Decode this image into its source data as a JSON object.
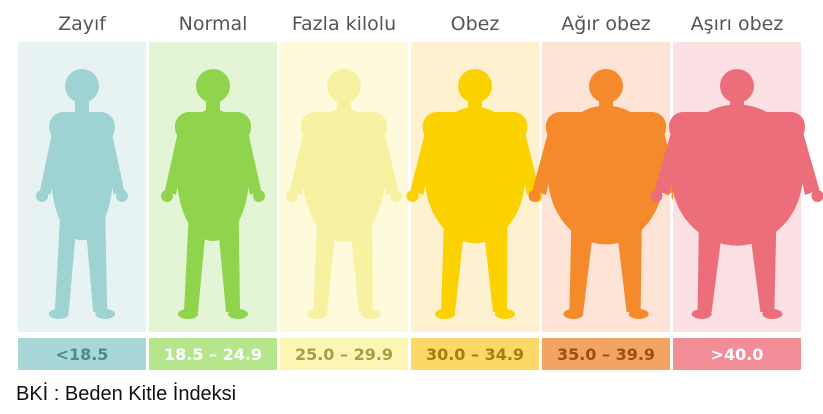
{
  "panels": [
    {
      "title": "Zayıf",
      "range": "<18.5"
    },
    {
      "title": "Normal",
      "range": "18.5 – 24.9"
    },
    {
      "title": "Fazla kilolu",
      "range": "25.0 – 29.9"
    },
    {
      "title": "Obez",
      "range": "30.0 – 34.9"
    },
    {
      "title": "Ağır obez",
      "range": "35.0 – 39.9"
    },
    {
      "title": "Aşırı obez",
      "range": ">40.0"
    }
  ],
  "footer": "BKİ : Beden Kitle İndeksi"
}
